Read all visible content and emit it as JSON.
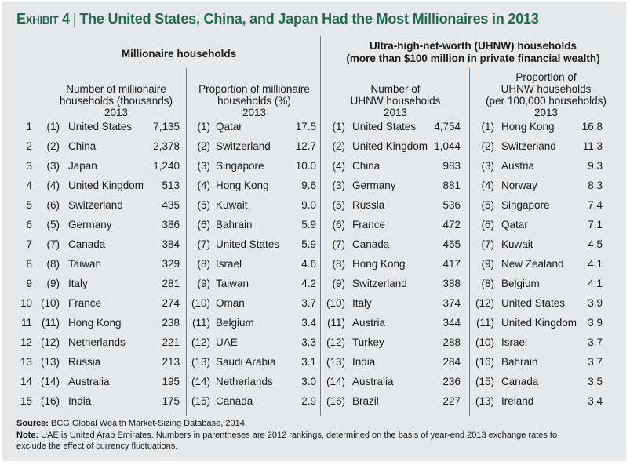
{
  "exhibit": {
    "label": "Exhibit 4",
    "title": "The United States, China, and Japan Had the Most Millionaires in 2013",
    "accent_color": "#1b6e52"
  },
  "groups": {
    "millionaire": "Millionaire households",
    "uhnw_line1": "Ultra-high-net-worth (UHNW) households",
    "uhnw_line2": "(more than $100 million in private financial wealth)"
  },
  "columns": [
    {
      "lines": [
        "Number of millionaire",
        "households (thousands)",
        "2013"
      ]
    },
    {
      "lines": [
        "Proportion of millionaire",
        "households (%)",
        "2013"
      ]
    },
    {
      "lines": [
        "Number of",
        "UHNW households",
        "2013"
      ]
    },
    {
      "lines": [
        "Proportion of",
        "UHNW households",
        "(per 100,000 households)",
        "2013"
      ]
    }
  ],
  "rows": [
    {
      "rank": "1",
      "c1": {
        "prev": "(1)",
        "country": "United States",
        "value": "7,135"
      },
      "c2": {
        "prev": "(1)",
        "country": "Qatar",
        "value": "17.5"
      },
      "c3": {
        "prev": "(1)",
        "country": "United States",
        "value": "4,754"
      },
      "c4": {
        "prev": "(1)",
        "country": "Hong Kong",
        "value": "16.8"
      }
    },
    {
      "rank": "2",
      "c1": {
        "prev": "(2)",
        "country": "China",
        "value": "2,378"
      },
      "c2": {
        "prev": "(2)",
        "country": "Switzerland",
        "value": "12.7"
      },
      "c3": {
        "prev": "(2)",
        "country": "United Kingdom",
        "value": "1,044"
      },
      "c4": {
        "prev": "(2)",
        "country": "Switzerland",
        "value": "11.3"
      }
    },
    {
      "rank": "3",
      "c1": {
        "prev": "(3)",
        "country": "Japan",
        "value": "1,240"
      },
      "c2": {
        "prev": "(3)",
        "country": "Singapore",
        "value": "10.0"
      },
      "c3": {
        "prev": "(4)",
        "country": "China",
        "value": "983"
      },
      "c4": {
        "prev": "(3)",
        "country": "Austria",
        "value": "9.3"
      }
    },
    {
      "rank": "4",
      "c1": {
        "prev": "(4)",
        "country": "United Kingdom",
        "value": "513"
      },
      "c2": {
        "prev": "(4)",
        "country": "Hong Kong",
        "value": "9.6"
      },
      "c3": {
        "prev": "(3)",
        "country": "Germany",
        "value": "881"
      },
      "c4": {
        "prev": "(4)",
        "country": "Norway",
        "value": "8.3"
      }
    },
    {
      "rank": "5",
      "c1": {
        "prev": "(6)",
        "country": "Switzerland",
        "value": "435"
      },
      "c2": {
        "prev": "(5)",
        "country": "Kuwait",
        "value": "9.0"
      },
      "c3": {
        "prev": "(5)",
        "country": "Russia",
        "value": "536"
      },
      "c4": {
        "prev": "(5)",
        "country": "Singapore",
        "value": "7.4"
      }
    },
    {
      "rank": "6",
      "c1": {
        "prev": "(5)",
        "country": "Germany",
        "value": "386"
      },
      "c2": {
        "prev": "(6)",
        "country": "Bahrain",
        "value": "5.9"
      },
      "c3": {
        "prev": "(6)",
        "country": "France",
        "value": "472"
      },
      "c4": {
        "prev": "(6)",
        "country": "Qatar",
        "value": "7.1"
      }
    },
    {
      "rank": "7",
      "c1": {
        "prev": "(7)",
        "country": "Canada",
        "value": "384"
      },
      "c2": {
        "prev": "(7)",
        "country": "United States",
        "value": "5.9"
      },
      "c3": {
        "prev": "(7)",
        "country": "Canada",
        "value": "465"
      },
      "c4": {
        "prev": "(7)",
        "country": "Kuwait",
        "value": "4.5"
      }
    },
    {
      "rank": "8",
      "c1": {
        "prev": "(8)",
        "country": "Taiwan",
        "value": "329"
      },
      "c2": {
        "prev": "(8)",
        "country": "Israel",
        "value": "4.6"
      },
      "c3": {
        "prev": "(8)",
        "country": "Hong Kong",
        "value": "417"
      },
      "c4": {
        "prev": "(9)",
        "country": "New Zealand",
        "value": "4.1"
      }
    },
    {
      "rank": "9",
      "c1": {
        "prev": "(9)",
        "country": "Italy",
        "value": "281"
      },
      "c2": {
        "prev": "(9)",
        "country": "Taiwan",
        "value": "4.2"
      },
      "c3": {
        "prev": "(9)",
        "country": "Switzerland",
        "value": "388"
      },
      "c4": {
        "prev": "(8)",
        "country": "Belgium",
        "value": "4.1"
      }
    },
    {
      "rank": "10",
      "c1": {
        "prev": "(10)",
        "country": "France",
        "value": "274"
      },
      "c2": {
        "prev": "(10)",
        "country": "Oman",
        "value": "3.7"
      },
      "c3": {
        "prev": "(10)",
        "country": "Italy",
        "value": "374"
      },
      "c4": {
        "prev": "(12)",
        "country": "United States",
        "value": "3.9"
      }
    },
    {
      "rank": "11",
      "c1": {
        "prev": "(11)",
        "country": "Hong Kong",
        "value": "238"
      },
      "c2": {
        "prev": "(11)",
        "country": "Belgium",
        "value": "3.4"
      },
      "c3": {
        "prev": "(11)",
        "country": "Austria",
        "value": "344"
      },
      "c4": {
        "prev": "(11)",
        "country": "United Kingdom",
        "value": "3.9"
      }
    },
    {
      "rank": "12",
      "c1": {
        "prev": "(12)",
        "country": "Netherlands",
        "value": "221"
      },
      "c2": {
        "prev": "(12)",
        "country": "UAE",
        "value": "3.3"
      },
      "c3": {
        "prev": "(12)",
        "country": "Turkey",
        "value": "288"
      },
      "c4": {
        "prev": "(10)",
        "country": "Israel",
        "value": "3.7"
      }
    },
    {
      "rank": "13",
      "c1": {
        "prev": "(13)",
        "country": "Russia",
        "value": "213"
      },
      "c2": {
        "prev": "(13)",
        "country": "Saudi Arabia",
        "value": "3.1"
      },
      "c3": {
        "prev": "(13)",
        "country": "India",
        "value": "284"
      },
      "c4": {
        "prev": "(16)",
        "country": "Bahrain",
        "value": "3.7"
      }
    },
    {
      "rank": "14",
      "c1": {
        "prev": "(14)",
        "country": "Australia",
        "value": "195"
      },
      "c2": {
        "prev": "(14)",
        "country": "Netherlands",
        "value": "3.0"
      },
      "c3": {
        "prev": "(14)",
        "country": "Australia",
        "value": "236"
      },
      "c4": {
        "prev": "(15)",
        "country": "Canada",
        "value": "3.5"
      }
    },
    {
      "rank": "15",
      "c1": {
        "prev": "(16)",
        "country": "India",
        "value": "175"
      },
      "c2": {
        "prev": "(15)",
        "country": "Canada",
        "value": "2.9"
      },
      "c3": {
        "prev": "(16)",
        "country": "Brazil",
        "value": "227"
      },
      "c4": {
        "prev": "(13)",
        "country": "Ireland",
        "value": "3.4"
      }
    }
  ],
  "footer": {
    "source_label": "Source:",
    "source_text": "BCG Global Wealth Market-Sizing Database, 2014.",
    "note_label": "Note:",
    "note_line1": "UAE is United Arab Emirates. Numbers in parentheses are 2012 rankings, determined on the basis of year-end 2013 exchange rates to",
    "note_line2": "exclude the effect of currency fluctuations."
  }
}
